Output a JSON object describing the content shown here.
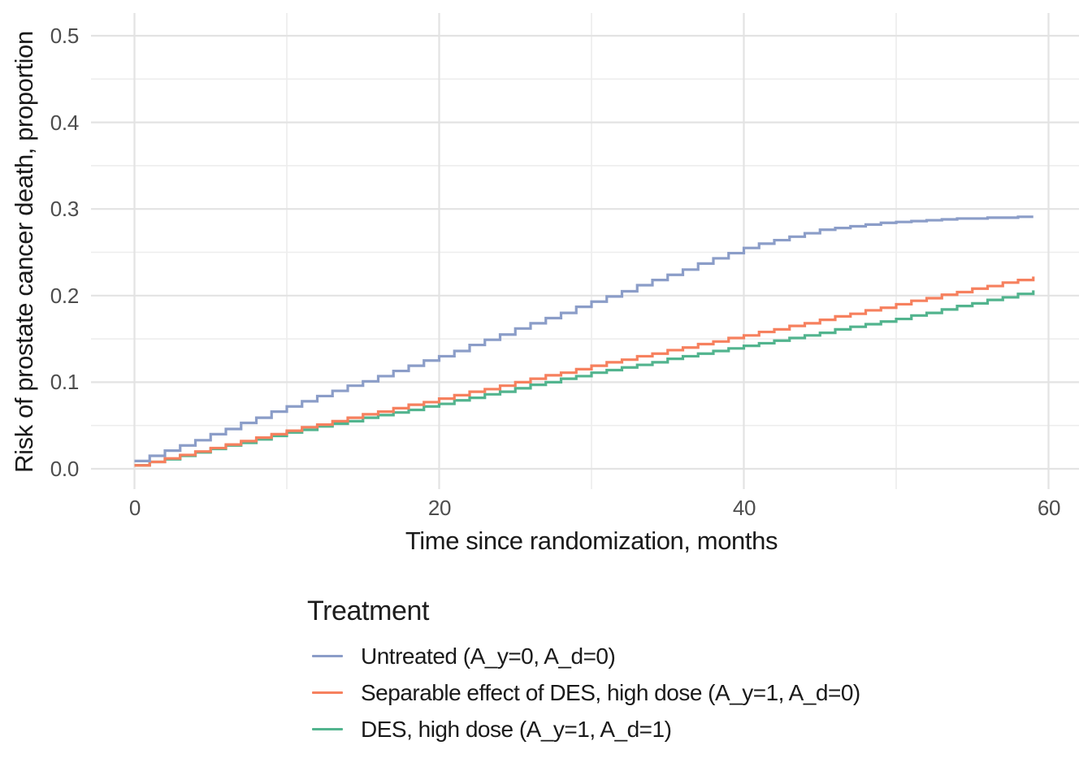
{
  "chart_data": {
    "type": "line",
    "subtype": "step",
    "title": "",
    "xlabel": "Time since randomization, months",
    "ylabel": "Risk of prostate cancer death, proportion",
    "xlim": [
      0,
      60
    ],
    "ylim": [
      0,
      0.5
    ],
    "grid": true,
    "x_ticks": [
      0,
      20,
      40,
      60
    ],
    "x_minor": [
      10,
      30,
      50
    ],
    "y_ticks": [
      0,
      0.1,
      0.2,
      0.3,
      0.4,
      0.5
    ],
    "y_minor": [
      0.05,
      0.15,
      0.25,
      0.35,
      0.45
    ],
    "x_tick_labels": [
      "0",
      "20",
      "40",
      "60"
    ],
    "y_tick_labels": [
      "0.0",
      "0.1",
      "0.2",
      "0.3",
      "0.4",
      "0.5"
    ],
    "legend_title": "Treatment",
    "legend_position": "bottom-left",
    "x": [
      0,
      1,
      2,
      3,
      4,
      5,
      6,
      7,
      8,
      9,
      10,
      11,
      12,
      13,
      14,
      15,
      16,
      17,
      18,
      19,
      20,
      21,
      22,
      23,
      24,
      25,
      26,
      27,
      28,
      29,
      30,
      31,
      32,
      33,
      34,
      35,
      36,
      37,
      38,
      39,
      40,
      41,
      42,
      43,
      44,
      45,
      46,
      47,
      48,
      49,
      50,
      51,
      52,
      53,
      54,
      55,
      56,
      57,
      58,
      59
    ],
    "series": [
      {
        "name": "Untreated (A_y=0, A_d=0)",
        "color": "#8b9dc8",
        "values": [
          0.009,
          0.015,
          0.021,
          0.027,
          0.033,
          0.04,
          0.046,
          0.053,
          0.059,
          0.066,
          0.072,
          0.078,
          0.084,
          0.09,
          0.096,
          0.101,
          0.107,
          0.113,
          0.119,
          0.125,
          0.13,
          0.136,
          0.143,
          0.149,
          0.155,
          0.162,
          0.168,
          0.174,
          0.18,
          0.187,
          0.193,
          0.199,
          0.205,
          0.212,
          0.218,
          0.224,
          0.23,
          0.237,
          0.243,
          0.249,
          0.255,
          0.26,
          0.264,
          0.268,
          0.272,
          0.276,
          0.278,
          0.28,
          0.282,
          0.284,
          0.285,
          0.286,
          0.287,
          0.288,
          0.289,
          0.289,
          0.29,
          0.29,
          0.291,
          0.291
        ]
      },
      {
        "name": "Separable effect of DES, high dose (A_y=1, A_d=0)",
        "color": "#f6805e",
        "values": [
          0.004,
          0.008,
          0.012,
          0.016,
          0.02,
          0.024,
          0.028,
          0.032,
          0.036,
          0.04,
          0.044,
          0.048,
          0.051,
          0.055,
          0.059,
          0.063,
          0.066,
          0.07,
          0.074,
          0.077,
          0.081,
          0.085,
          0.089,
          0.092,
          0.096,
          0.1,
          0.104,
          0.108,
          0.111,
          0.115,
          0.119,
          0.123,
          0.126,
          0.13,
          0.133,
          0.137,
          0.14,
          0.144,
          0.147,
          0.151,
          0.154,
          0.158,
          0.161,
          0.165,
          0.168,
          0.172,
          0.176,
          0.179,
          0.183,
          0.186,
          0.19,
          0.194,
          0.197,
          0.201,
          0.204,
          0.208,
          0.211,
          0.215,
          0.218,
          0.222
        ]
      },
      {
        "name": "DES, high dose (A_y=1, A_d=1)",
        "color": "#52b48e",
        "values": [
          0.004,
          0.008,
          0.011,
          0.015,
          0.019,
          0.023,
          0.027,
          0.03,
          0.034,
          0.038,
          0.042,
          0.045,
          0.049,
          0.052,
          0.055,
          0.059,
          0.062,
          0.065,
          0.068,
          0.072,
          0.075,
          0.079,
          0.082,
          0.086,
          0.089,
          0.093,
          0.097,
          0.1,
          0.104,
          0.107,
          0.111,
          0.114,
          0.117,
          0.12,
          0.123,
          0.127,
          0.13,
          0.133,
          0.136,
          0.139,
          0.142,
          0.145,
          0.148,
          0.151,
          0.154,
          0.157,
          0.161,
          0.164,
          0.167,
          0.17,
          0.173,
          0.177,
          0.18,
          0.184,
          0.188,
          0.191,
          0.195,
          0.198,
          0.202,
          0.206
        ]
      }
    ],
    "grid_major_color": "#e3e3e3",
    "grid_minor_color": "#ededed",
    "tick_label_color": "#4d4d4d"
  }
}
